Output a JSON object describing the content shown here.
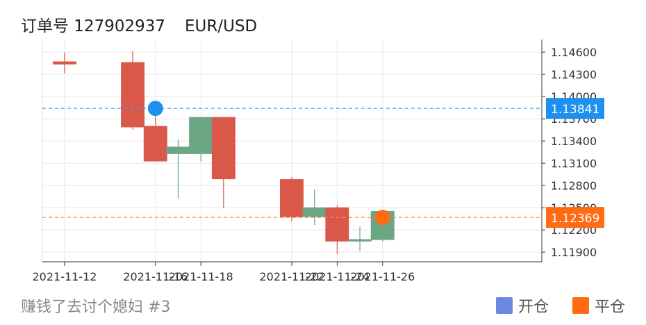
{
  "header": {
    "order_label": "订单号 127902937",
    "pair": "EUR/USD"
  },
  "footer": {
    "caption": "赚钱了去讨个媳妇 #3"
  },
  "legend": [
    {
      "label": "开仓",
      "color": "#6b88e0"
    },
    {
      "label": "平仓",
      "color": "#ff6a13"
    }
  ],
  "colors": {
    "up": "#6aa684",
    "down": "#d9584a",
    "open_line": "#3aa8e6",
    "close_line": "#ff8a3d",
    "open_marker": "#1e90f0",
    "close_marker": "#ff6a13"
  },
  "chart_data": {
    "type": "candlestick",
    "x_ticks": [
      "2021-11-12",
      "2021-11-16",
      "2021-11-18",
      "2021-11-22",
      "2021-11-24",
      "2021-11-26"
    ],
    "y_ticks": [
      "1.14600",
      "1.14300",
      "1.14000",
      "1.13700",
      "1.13400",
      "1.13100",
      "1.12800",
      "1.12500",
      "1.12200",
      "1.11900"
    ],
    "ylim": [
      1.1177,
      1.1477
    ],
    "candles": [
      {
        "date": "2021-11-12",
        "open": 1.14475,
        "close": 1.14435,
        "high": 1.14595,
        "low": 1.14315
      },
      {
        "date": "2021-11-15",
        "open": 1.14465,
        "close": 1.13585,
        "high": 1.14615,
        "low": 1.13555
      },
      {
        "date": "2021-11-16",
        "open": 1.13605,
        "close": 1.13125,
        "high": 1.13805,
        "low": 1.13125
      },
      {
        "date": "2021-11-17",
        "open": 1.13225,
        "close": 1.13325,
        "high": 1.13425,
        "low": 1.12625
      },
      {
        "date": "2021-11-18",
        "open": 1.13225,
        "close": 1.13725,
        "high": 1.13725,
        "low": 1.13125
      },
      {
        "date": "2021-11-19",
        "open": 1.13725,
        "close": 1.12885,
        "high": 1.13725,
        "low": 1.12495
      },
      {
        "date": "2021-11-22",
        "open": 1.12885,
        "close": 1.12375,
        "high": 1.12915,
        "low": 1.12315
      },
      {
        "date": "2021-11-23",
        "open": 1.12375,
        "close": 1.12505,
        "high": 1.12745,
        "low": 1.12265
      },
      {
        "date": "2021-11-24",
        "open": 1.12505,
        "close": 1.12045,
        "high": 1.12535,
        "low": 1.11875
      },
      {
        "date": "2021-11-25",
        "open": 1.12045,
        "close": 1.12075,
        "high": 1.12245,
        "low": 1.11915
      },
      {
        "date": "2021-11-26",
        "open": 1.12065,
        "close": 1.12455,
        "high": 1.12475,
        "low": 1.12045
      }
    ],
    "open_price": {
      "value": 1.13841,
      "label": "1.13841",
      "date": "2021-11-16"
    },
    "close_price": {
      "value": 1.12369,
      "label": "1.12369",
      "date": "2021-11-26"
    }
  }
}
